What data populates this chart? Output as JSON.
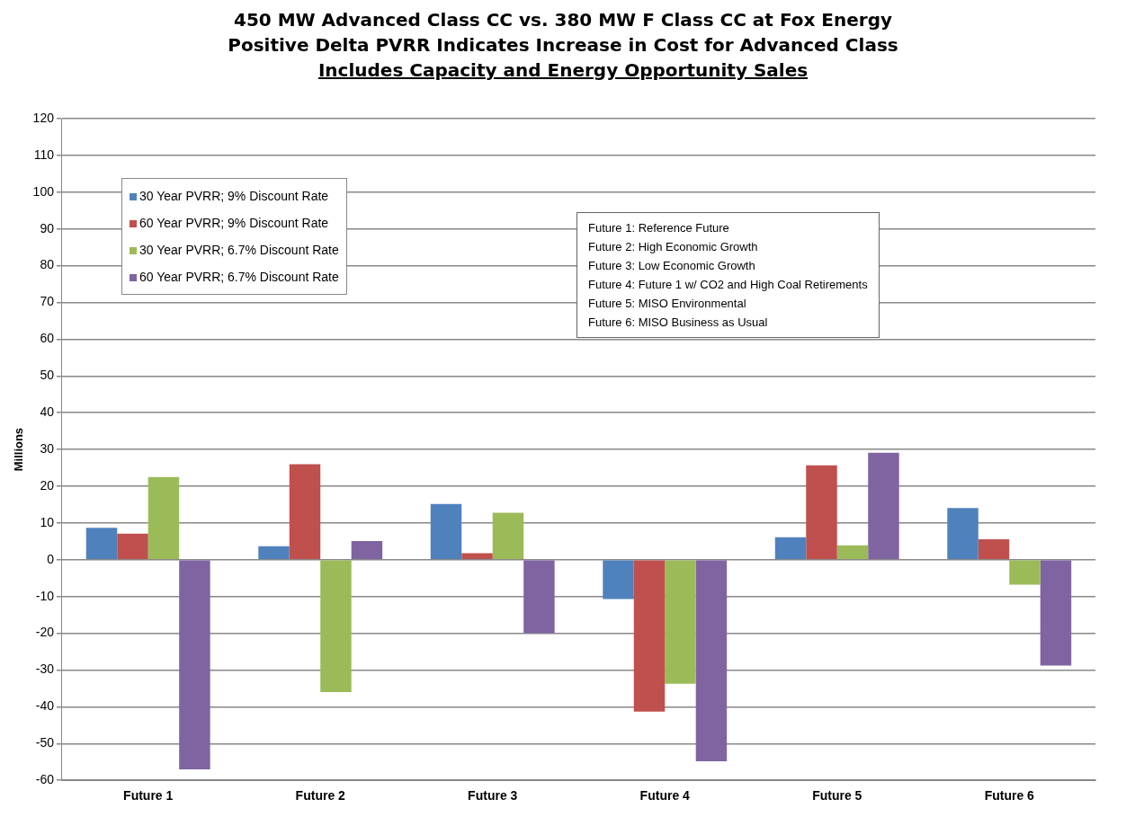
{
  "chart_data": {
    "type": "bar",
    "title": "450 MW Advanced Class CC vs. 380 MW F Class CC at Fox Energy\nPositive Delta PVRR Indicates Increase in Cost for Advanced Class",
    "subtitle": "Includes Capacity and Energy Opportunity Sales",
    "ylabel": "Millions",
    "categories": [
      "Future 1",
      "Future 2",
      "Future 3",
      "Future 4",
      "Future 5",
      "Future 6"
    ],
    "series": [
      {
        "name": "30 Year PVRR; 9% Discount Rate",
        "color": "#4f81bd",
        "values": [
          8.7,
          3.7,
          15.2,
          -10.7,
          6.1,
          14.1
        ]
      },
      {
        "name": "60 Year PVRR; 9% Discount Rate",
        "color": "#c0504d",
        "values": [
          7.1,
          26,
          1.8,
          -41.3,
          25.7,
          5.6
        ]
      },
      {
        "name": "30 Year PVRR; 6.7% Discount Rate",
        "color": "#9bbb59",
        "values": [
          22.5,
          -36,
          12.8,
          -33.7,
          3.9,
          -6.8
        ]
      },
      {
        "name": "60 Year PVRR; 6.7% Discount Rate",
        "color": "#8064a2",
        "values": [
          -57,
          5.1,
          -20,
          -54.8,
          29.1,
          -28.8
        ]
      }
    ],
    "ylim": [
      -60,
      120
    ],
    "yticks": [
      -60,
      -50,
      -40,
      -30,
      -20,
      -10,
      0,
      10,
      20,
      30,
      40,
      50,
      60,
      70,
      80,
      90,
      100,
      110,
      120
    ],
    "grid": "y",
    "legend": "top left",
    "annotations": [
      "Future 1: Reference Future",
      "Future 2: High Economic Growth",
      "Future 3: Low Economic Growth",
      "Future 4: Future 1 w/ CO2 and High Coal Retirements",
      "Future 5: MISO Environmental",
      "Future 6: MISO Business as Usual"
    ]
  }
}
